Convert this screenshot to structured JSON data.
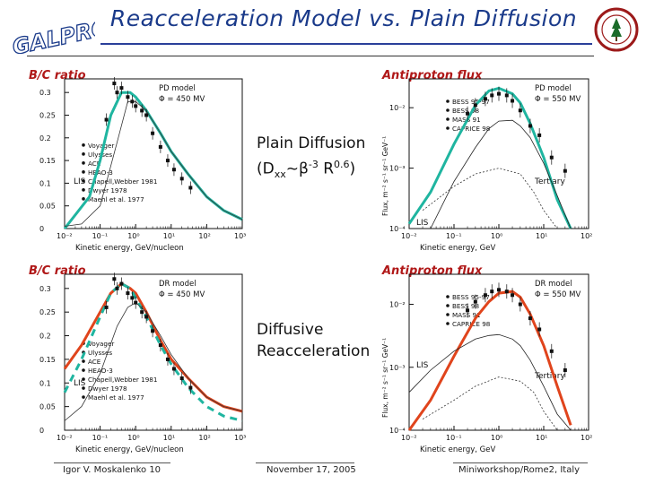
{
  "slide": {
    "title": "Reacceleration Model vs. Plain Diffusion",
    "logo_text": "GALPROP",
    "footer": {
      "left": "Igor V. Moskalenko   10",
      "center": "November 17, 2005",
      "right": "Miniworkshop/Rome2, Italy"
    },
    "middle_labels": [
      {
        "line1": "Plain Diffusion",
        "line2_prefix": "(D",
        "line2_sub": "xx",
        "line2_mid": "~β",
        "line2_sup1": "-3",
        "line2_R": " R",
        "line2_sup2": "0.6",
        "line2_end": ")"
      },
      {
        "line1": "Diffusive",
        "line2": "Reacceleration"
      }
    ],
    "colors": {
      "title": "#1a3a8a",
      "label": "#b01818",
      "pd_model": "#1fb5a0",
      "dr_model": "#e0441c"
    }
  },
  "chart_data": [
    {
      "type": "line",
      "panel_label": "B/C ratio",
      "model_label": "PD model",
      "phi_label": "Φ = 450 MV",
      "xlabel": "Kinetic energy, GeV/nucleon",
      "xticks": [
        "10⁻²",
        "10⁻¹",
        "10⁰",
        "10¹",
        "10²",
        "10³"
      ],
      "yticks": [
        "0",
        "0.05",
        "0.1",
        "0.15",
        "0.2",
        "0.25",
        "0.3"
      ],
      "xlim": [
        0.01,
        1000
      ],
      "ylim": [
        0,
        0.33
      ],
      "legend": [
        "Voyager",
        "Ulysses",
        "ACE",
        "HEAO-3",
        "Chapell,Webber 1981",
        "Dwyer 1978",
        "Maehl et al. 1977"
      ],
      "annotations": [
        "LIS"
      ],
      "series": [
        {
          "style": "model",
          "x": [
            0.01,
            0.05,
            0.1,
            0.2,
            0.4,
            0.7,
            1,
            2,
            5,
            10,
            30,
            100,
            300,
            1000
          ],
          "y": [
            0.0,
            0.07,
            0.15,
            0.25,
            0.3,
            0.3,
            0.29,
            0.26,
            0.21,
            0.17,
            0.12,
            0.07,
            0.04,
            0.02
          ]
        },
        {
          "style": "lis",
          "x": [
            0.01,
            0.03,
            0.1,
            0.3,
            0.6,
            1,
            2,
            5,
            10,
            30,
            100,
            300,
            1000
          ],
          "y": [
            0.005,
            0.01,
            0.05,
            0.19,
            0.28,
            0.28,
            0.26,
            0.21,
            0.17,
            0.12,
            0.07,
            0.04,
            0.02
          ]
        }
      ],
      "points": [
        {
          "x": 0.25,
          "y": 0.32
        },
        {
          "x": 0.3,
          "y": 0.3
        },
        {
          "x": 0.4,
          "y": 0.31
        },
        {
          "x": 0.6,
          "y": 0.29
        },
        {
          "x": 0.8,
          "y": 0.28
        },
        {
          "x": 1.0,
          "y": 0.27
        },
        {
          "x": 1.5,
          "y": 0.26
        },
        {
          "x": 2,
          "y": 0.25
        },
        {
          "x": 3,
          "y": 0.21
        },
        {
          "x": 5,
          "y": 0.18
        },
        {
          "x": 8,
          "y": 0.15
        },
        {
          "x": 12,
          "y": 0.13
        },
        {
          "x": 20,
          "y": 0.11
        },
        {
          "x": 35,
          "y": 0.09
        },
        {
          "x": 0.15,
          "y": 0.24
        }
      ]
    },
    {
      "type": "line",
      "panel_label": "Antiproton flux",
      "model_label": "PD model",
      "phi_label": "Φ = 550 MV",
      "xlabel": "Kinetic energy, GeV",
      "ylabel": "Flux, m⁻² s⁻¹ sr⁻¹ GeV⁻¹",
      "xticks": [
        "10⁻²",
        "10⁻¹",
        "10⁰",
        "10¹",
        "10²"
      ],
      "yticks": [
        "10⁻⁴",
        "10⁻³",
        "10⁻²"
      ],
      "xlim": [
        0.01,
        100
      ],
      "ylim": [
        0.0001,
        0.03
      ],
      "ylog": true,
      "legend": [
        "BESS 95-97",
        "BESS 98",
        "MASS 91",
        "CAPRICE 98"
      ],
      "annotations": [
        "Tertiary",
        "LIS"
      ],
      "series": [
        {
          "style": "model",
          "x": [
            0.01,
            0.03,
            0.1,
            0.3,
            0.6,
            1,
            2,
            3,
            5,
            10,
            20,
            40
          ],
          "y": [
            0.00012,
            0.0004,
            0.0025,
            0.011,
            0.019,
            0.021,
            0.017,
            0.012,
            0.0055,
            0.0015,
            0.0003,
            0.0001
          ]
        },
        {
          "style": "thin",
          "x": [
            0.03,
            0.1,
            0.3,
            0.6,
            1,
            2,
            3,
            5,
            10,
            20,
            40
          ],
          "y": [
            0.0001,
            0.0006,
            0.0022,
            0.0045,
            0.006,
            0.0062,
            0.005,
            0.0032,
            0.0012,
            0.00035,
            0.0001
          ]
        },
        {
          "style": "dotted",
          "x": [
            0.02,
            0.1,
            0.3,
            1,
            3,
            6,
            10,
            20
          ],
          "y": [
            0.0002,
            0.0005,
            0.0008,
            0.001,
            0.0008,
            0.0004,
            0.0002,
            0.0001
          ]
        }
      ],
      "points": [
        {
          "x": 0.2,
          "y": 0.008
        },
        {
          "x": 0.3,
          "y": 0.011
        },
        {
          "x": 0.5,
          "y": 0.014
        },
        {
          "x": 0.7,
          "y": 0.016
        },
        {
          "x": 1.0,
          "y": 0.017
        },
        {
          "x": 1.5,
          "y": 0.016
        },
        {
          "x": 2.0,
          "y": 0.013
        },
        {
          "x": 3,
          "y": 0.009
        },
        {
          "x": 5,
          "y": 0.005
        },
        {
          "x": 8,
          "y": 0.0035
        },
        {
          "x": 15,
          "y": 0.0015
        },
        {
          "x": 30,
          "y": 0.0009
        }
      ]
    },
    {
      "type": "line",
      "panel_label": "B/C ratio",
      "model_label": "DR model",
      "phi_label": "Φ = 450 MV",
      "xlabel": "Kinetic energy, GeV/nucleon",
      "xticks": [
        "10⁻²",
        "10⁻¹",
        "10⁰",
        "10¹",
        "10²",
        "10³"
      ],
      "yticks": [
        "0",
        "0.05",
        "0.1",
        "0.15",
        "0.2",
        "0.25",
        "0.3"
      ],
      "xlim": [
        0.01,
        1000
      ],
      "ylim": [
        0,
        0.33
      ],
      "legend": [
        "Voyager",
        "Ulysses",
        "ACE",
        "HEAO-3",
        "Chapell,Webber 1981",
        "Dwyer 1978",
        "Maehl et al. 1977"
      ],
      "annotations": [
        "LIS"
      ],
      "series": [
        {
          "style": "model",
          "x": [
            0.01,
            0.03,
            0.1,
            0.2,
            0.4,
            0.7,
            1,
            2,
            5,
            10,
            30,
            100,
            300,
            1000
          ],
          "y": [
            0.13,
            0.18,
            0.25,
            0.29,
            0.31,
            0.3,
            0.29,
            0.25,
            0.19,
            0.15,
            0.11,
            0.07,
            0.05,
            0.04
          ]
        },
        {
          "style": "dashed",
          "x": [
            0.01,
            0.03,
            0.1,
            0.2,
            0.4,
            0.7,
            1,
            2,
            5,
            10,
            30,
            100,
            300,
            1000
          ],
          "y": [
            0.08,
            0.15,
            0.24,
            0.29,
            0.31,
            0.3,
            0.28,
            0.24,
            0.18,
            0.14,
            0.09,
            0.05,
            0.03,
            0.02
          ]
        },
        {
          "style": "lis",
          "x": [
            0.01,
            0.03,
            0.1,
            0.3,
            0.6,
            1,
            2,
            5,
            10,
            30,
            100,
            300,
            1000
          ],
          "y": [
            0.02,
            0.05,
            0.12,
            0.22,
            0.26,
            0.27,
            0.25,
            0.2,
            0.16,
            0.11,
            0.07,
            0.05,
            0.04
          ]
        }
      ],
      "points": [
        {
          "x": 0.25,
          "y": 0.32
        },
        {
          "x": 0.3,
          "y": 0.3
        },
        {
          "x": 0.4,
          "y": 0.31
        },
        {
          "x": 0.6,
          "y": 0.29
        },
        {
          "x": 0.8,
          "y": 0.28
        },
        {
          "x": 1.0,
          "y": 0.27
        },
        {
          "x": 1.5,
          "y": 0.25
        },
        {
          "x": 2,
          "y": 0.24
        },
        {
          "x": 3,
          "y": 0.21
        },
        {
          "x": 5,
          "y": 0.18
        },
        {
          "x": 8,
          "y": 0.15
        },
        {
          "x": 12,
          "y": 0.13
        },
        {
          "x": 20,
          "y": 0.11
        },
        {
          "x": 35,
          "y": 0.09
        },
        {
          "x": 0.15,
          "y": 0.26
        }
      ]
    },
    {
      "type": "line",
      "panel_label": "Antiproton flux",
      "model_label": "DR model",
      "phi_label": "Φ = 550 MV",
      "xlabel": "Kinetic energy, GeV",
      "ylabel": "Flux, m⁻² s⁻¹ sr⁻¹ GeV⁻¹",
      "xticks": [
        "10⁻²",
        "10⁻¹",
        "10⁰",
        "10¹",
        "10²"
      ],
      "yticks": [
        "10⁻⁴",
        "10⁻³",
        "10⁻²"
      ],
      "xlim": [
        0.01,
        100
      ],
      "ylim": [
        0.0001,
        0.03
      ],
      "ylog": true,
      "legend": [
        "BESS 95-97",
        "BESS 98",
        "MASS 91",
        "CAPRICE 98"
      ],
      "annotations": [
        "Tertiary",
        "LIS"
      ],
      "series": [
        {
          "style": "model",
          "x": [
            0.01,
            0.03,
            0.1,
            0.3,
            0.6,
            1,
            2,
            3,
            5,
            10,
            20,
            40
          ],
          "y": [
            0.0001,
            0.0003,
            0.0015,
            0.006,
            0.011,
            0.015,
            0.016,
            0.013,
            0.007,
            0.0022,
            0.0005,
            0.00012
          ]
        },
        {
          "style": "thin",
          "x": [
            0.01,
            0.03,
            0.1,
            0.3,
            0.6,
            1,
            2,
            3,
            5,
            10,
            20,
            40
          ],
          "y": [
            0.0004,
            0.0009,
            0.0018,
            0.0028,
            0.0032,
            0.0033,
            0.0028,
            0.0022,
            0.0013,
            0.0005,
            0.00018,
            0.0001
          ]
        },
        {
          "style": "dotted",
          "x": [
            0.02,
            0.1,
            0.3,
            1,
            3,
            6,
            10,
            20
          ],
          "y": [
            0.00015,
            0.0003,
            0.0005,
            0.0007,
            0.0006,
            0.0004,
            0.0002,
            0.0001
          ]
        }
      ],
      "points": [
        {
          "x": 0.2,
          "y": 0.008
        },
        {
          "x": 0.3,
          "y": 0.011
        },
        {
          "x": 0.5,
          "y": 0.014
        },
        {
          "x": 0.7,
          "y": 0.016
        },
        {
          "x": 1.0,
          "y": 0.017
        },
        {
          "x": 1.5,
          "y": 0.016
        },
        {
          "x": 2.0,
          "y": 0.014
        },
        {
          "x": 3,
          "y": 0.01
        },
        {
          "x": 5,
          "y": 0.006
        },
        {
          "x": 8,
          "y": 0.004
        },
        {
          "x": 15,
          "y": 0.0018
        },
        {
          "x": 30,
          "y": 0.0009
        }
      ]
    }
  ]
}
